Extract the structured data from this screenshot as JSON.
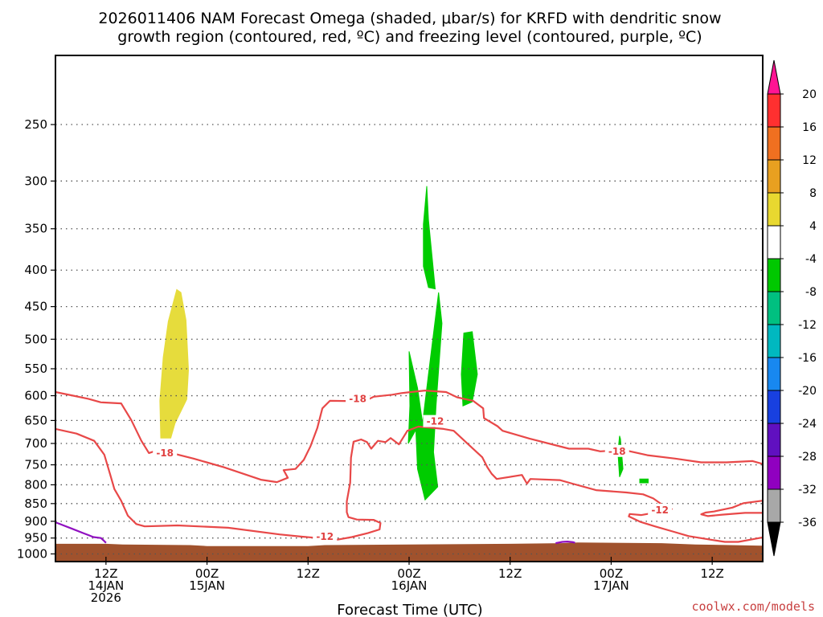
{
  "chart_data": {
    "type": "time-height cross section",
    "title_line1": "2026011406 NAM Forecast Omega (shaded, μbar/s) for KRFD with dendritic snow",
    "title_line2": "growth region (contoured, red, ºC) and freezing level (contoured, purple, ºC)",
    "xlabel": "Forecast Time (UTC)",
    "credit": "coolwx.com/models",
    "y_scale": "log-pressure",
    "y_ticks": [
      250,
      300,
      350,
      400,
      450,
      500,
      550,
      600,
      650,
      700,
      750,
      800,
      850,
      900,
      950,
      1000
    ],
    "ylim": [
      200,
      1025
    ],
    "grid": "dotted, horizontal",
    "x_ticks": [
      {
        "hour": 6,
        "line1": "12Z",
        "line2": "14JAN",
        "line3": "2026"
      },
      {
        "hour": 18,
        "line1": "00Z",
        "line2": "15JAN",
        "line3": ""
      },
      {
        "hour": 30,
        "line1": "12Z",
        "line2": "",
        "line3": ""
      },
      {
        "hour": 42,
        "line1": "00Z",
        "line2": "16JAN",
        "line3": ""
      },
      {
        "hour": 54,
        "line1": "12Z",
        "line2": "",
        "line3": ""
      },
      {
        "hour": 66,
        "line1": "00Z",
        "line2": "17JAN",
        "line3": ""
      },
      {
        "hour": 78,
        "line1": "12Z",
        "line2": "",
        "line3": ""
      }
    ],
    "xlim_hours": [
      0,
      84
    ],
    "colorbar": {
      "labels": [
        "20",
        "16",
        "12",
        "8",
        "4",
        "-4",
        "-8",
        "-12",
        "-16",
        "-20",
        "-24",
        "-28",
        "-32",
        "-36"
      ],
      "colors": [
        "#ff1493",
        "#ff3030",
        "#f07020",
        "#e8a020",
        "#e8d830",
        "#ffffff",
        "#00c800",
        "#00c080",
        "#00b8c0",
        "#1888f0",
        "#1840e0",
        "#6010c0",
        "#9000c0",
        "#a8a8a8",
        "#000000"
      ]
    },
    "shaded_areas": [
      {
        "name": "omega 4 to 8",
        "color": "#e6dc3c",
        "points": [
          [
            12.5,
            688
          ],
          [
            13.7,
            688
          ],
          [
            14.2,
            656
          ],
          [
            15.6,
            607
          ],
          [
            15.8,
            552
          ],
          [
            15.5,
            470
          ],
          [
            14.9,
            430
          ],
          [
            14.4,
            426
          ],
          [
            13.4,
            472
          ],
          [
            12.8,
            530
          ],
          [
            12.4,
            610
          ]
        ]
      },
      {
        "name": "omega -4 to -8",
        "color": "#00cc00",
        "points": [
          [
            44.1,
            305
          ],
          [
            43.7,
            345
          ],
          [
            43.7,
            395
          ],
          [
            44.3,
            423
          ],
          [
            45.1,
            425
          ],
          [
            44.3,
            340
          ]
        ]
      },
      {
        "name": "omega -4 to -8",
        "color": "#00cc00",
        "points": [
          [
            42.8,
            670
          ],
          [
            43.0,
            760
          ],
          [
            43.9,
            840
          ],
          [
            45.4,
            805
          ],
          [
            44.9,
            720
          ],
          [
            45.2,
            620
          ],
          [
            45.9,
            475
          ],
          [
            45.5,
            430
          ],
          [
            44.3,
            560
          ],
          [
            43.6,
            655
          ],
          [
            43.0,
            585
          ],
          [
            42.0,
            520
          ],
          [
            42.1,
            620
          ],
          [
            41.9,
            700
          ]
        ]
      },
      {
        "name": "omega -4 to -8",
        "color": "#00cc00",
        "points": [
          [
            49.5,
            488
          ],
          [
            48.5,
            490
          ],
          [
            48.2,
            560
          ],
          [
            48.4,
            620
          ],
          [
            49.5,
            612
          ],
          [
            50.1,
            560
          ]
        ]
      },
      {
        "name": "omega -4 to -8",
        "color": "#00cc00",
        "points": [
          [
            67.0,
            683
          ],
          [
            66.8,
            720
          ],
          [
            67.0,
            780
          ],
          [
            67.4,
            760
          ],
          [
            67.1,
            690
          ]
        ]
      },
      {
        "name": "omega -4 to -8",
        "color": "#00cc00",
        "points": [
          [
            69.4,
            785
          ],
          [
            70.4,
            785
          ],
          [
            70.4,
            795
          ],
          [
            69.4,
            795
          ]
        ]
      }
    ],
    "terrain": {
      "name": "surface",
      "color": "#a0522d",
      "points": [
        [
          0,
          968
        ],
        [
          6,
          968
        ],
        [
          8,
          970
        ],
        [
          16,
          972
        ],
        [
          18,
          975
        ],
        [
          30,
          975
        ],
        [
          32,
          972
        ],
        [
          42,
          970
        ],
        [
          54,
          968
        ],
        [
          60,
          966
        ],
        [
          62,
          964
        ],
        [
          72,
          966
        ],
        [
          76,
          970
        ],
        [
          84,
          974
        ]
      ]
    },
    "contours": [
      {
        "name": "-18 C",
        "color": "#e84848",
        "points": [
          [
            0,
            593
          ],
          [
            2.1,
            600
          ],
          [
            3.9,
            606
          ],
          [
            5.4,
            613
          ],
          [
            7.8,
            615
          ],
          [
            9.0,
            649
          ],
          [
            10.2,
            694
          ],
          [
            11.1,
            722
          ],
          [
            11.9,
            717
          ],
          [
            13.6,
            721
          ],
          [
            16.4,
            735
          ],
          [
            20.0,
            756
          ],
          [
            24.4,
            787
          ],
          [
            26.3,
            793
          ],
          [
            27.6,
            782
          ],
          [
            27.1,
            763
          ],
          [
            28.5,
            760
          ],
          [
            29.5,
            738
          ],
          [
            30.3,
            706
          ],
          [
            31.1,
            666
          ],
          [
            31.7,
            625
          ],
          [
            32.6,
            610
          ],
          [
            36.7,
            611
          ],
          [
            37.8,
            602
          ],
          [
            40.0,
            598
          ],
          [
            41.1,
            595
          ],
          [
            43.9,
            590
          ],
          [
            46.4,
            593
          ],
          [
            47.7,
            603
          ],
          [
            49.6,
            610
          ],
          [
            50.8,
            625
          ],
          [
            50.9,
            645
          ],
          [
            52.5,
            662
          ],
          [
            53.1,
            672
          ],
          [
            56.3,
            689
          ],
          [
            61.0,
            712
          ],
          [
            63.3,
            712
          ],
          [
            64.7,
            718
          ],
          [
            67.5,
            715
          ],
          [
            70.3,
            727
          ],
          [
            73.6,
            735
          ],
          [
            76.7,
            744
          ],
          [
            79.7,
            744
          ],
          [
            82.8,
            741
          ],
          [
            84,
            748
          ]
        ]
      },
      {
        "name": "-12 C",
        "color": "#e84848",
        "points": [
          [
            0,
            668
          ],
          [
            2.5,
            678
          ],
          [
            4.6,
            694
          ],
          [
            5.8,
            726
          ],
          [
            6.5,
            774
          ],
          [
            7.0,
            811
          ],
          [
            7.8,
            842
          ],
          [
            8.6,
            884
          ],
          [
            9.6,
            908
          ],
          [
            10.6,
            915
          ],
          [
            14.5,
            912
          ],
          [
            20.5,
            919
          ],
          [
            26.6,
            939
          ],
          [
            29.4,
            946
          ],
          [
            33.5,
            955
          ],
          [
            35.2,
            947
          ],
          [
            37.1,
            935
          ],
          [
            38.5,
            924
          ],
          [
            38.6,
            905
          ],
          [
            37.8,
            896
          ],
          [
            35.8,
            895
          ],
          [
            34.8,
            888
          ],
          [
            34.6,
            874
          ],
          [
            34.6,
            844
          ],
          [
            35.0,
            795
          ],
          [
            35.1,
            733
          ],
          [
            35.4,
            696
          ],
          [
            36.3,
            691
          ],
          [
            37.0,
            697
          ],
          [
            37.5,
            712
          ],
          [
            38.3,
            694
          ],
          [
            39.2,
            697
          ],
          [
            39.8,
            688
          ],
          [
            40.8,
            702
          ],
          [
            41.8,
            672
          ],
          [
            43.1,
            663
          ],
          [
            46.1,
            668
          ],
          [
            47.3,
            672
          ],
          [
            49.2,
            705
          ],
          [
            50.7,
            732
          ],
          [
            51.3,
            756
          ],
          [
            51.8,
            772
          ],
          [
            52.4,
            785
          ],
          [
            55.4,
            775
          ],
          [
            56.0,
            797
          ],
          [
            56.4,
            785
          ],
          [
            59.9,
            788
          ],
          [
            61.4,
            797
          ],
          [
            64.2,
            814
          ],
          [
            67.8,
            820
          ],
          [
            69.8,
            825
          ],
          [
            71.0,
            836
          ],
          [
            72.3,
            857
          ],
          [
            73.2,
            865
          ],
          [
            72.3,
            865
          ],
          [
            71.0,
            876
          ],
          [
            69.6,
            882
          ],
          [
            68.2,
            879
          ],
          [
            68.1,
            886
          ],
          [
            69.5,
            902
          ],
          [
            71.2,
            915
          ],
          [
            73.3,
            930
          ],
          [
            75.2,
            944
          ],
          [
            78.0,
            956
          ],
          [
            79.5,
            962
          ],
          [
            81.1,
            962
          ],
          [
            84,
            948
          ]
        ]
      },
      {
        "name": "-12 C",
        "color": "#e84848",
        "points": [
          [
            84,
            842
          ],
          [
            81.7,
            849
          ],
          [
            80.4,
            861
          ],
          [
            78.2,
            872
          ],
          [
            77.2,
            875
          ],
          [
            76.7,
            880
          ],
          [
            77.5,
            885
          ],
          [
            79.2,
            881
          ],
          [
            81.9,
            876
          ],
          [
            84,
            876
          ]
        ]
      },
      {
        "name": "freezing level",
        "color": "#9010c0",
        "points": [
          [
            0,
            903
          ],
          [
            1.9,
            921
          ],
          [
            3.4,
            936
          ],
          [
            4.0,
            942
          ],
          [
            4.5,
            947
          ],
          [
            5.4,
            950
          ],
          [
            5.7,
            957
          ],
          [
            6.0,
            965
          ]
        ]
      },
      {
        "name": "freezing level",
        "color": "#9010c0",
        "points": [
          [
            59.4,
            966
          ],
          [
            60.2,
            962
          ],
          [
            60.8,
            961
          ],
          [
            61.5,
            963
          ],
          [
            61.7,
            965
          ]
        ]
      }
    ],
    "contour_labels": [
      {
        "text": "-18",
        "hour": 13.0,
        "p": 722
      },
      {
        "text": "-18",
        "hour": 35.9,
        "p": 606
      },
      {
        "text": "-12",
        "hour": 45.1,
        "p": 652
      },
      {
        "text": "-18",
        "hour": 66.7,
        "p": 718
      },
      {
        "text": "-12",
        "hour": 32.0,
        "p": 946
      },
      {
        "text": "-12",
        "hour": 71.8,
        "p": 868
      }
    ]
  }
}
